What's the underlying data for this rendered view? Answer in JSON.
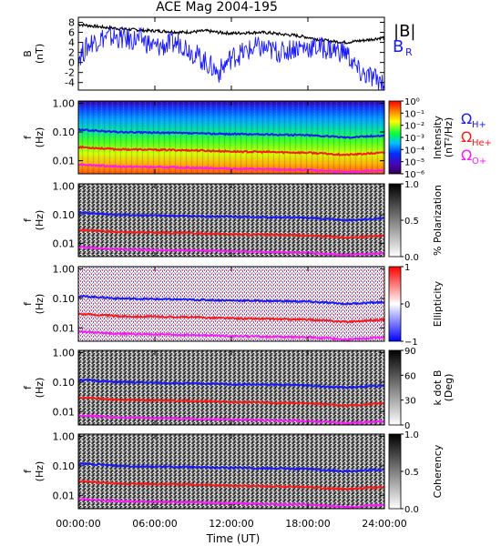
{
  "chart_data": {
    "type": "heatmap",
    "title": "ACE Mag 2004-195",
    "xlabel": "Time (UT)",
    "x_ticks": [
      "00:00:00",
      "06:00:00",
      "12:00:00",
      "18:00:00",
      "24:00:00"
    ],
    "xlim_hours": [
      0,
      24
    ],
    "panels": [
      {
        "name": "B",
        "kind": "line",
        "ylabel": "B",
        "yunit": "(nT)",
        "ylim": [
          -5.5,
          9
        ],
        "y_ticks": [
          "-4",
          "-2",
          "0",
          "2",
          "4",
          "6",
          "8"
        ],
        "legend": [
          "|B|",
          "B",
          "R"
        ],
        "series": [
          {
            "name": "|B|",
            "color": "#000000",
            "x_hours": [
              0,
              1,
              2,
              3,
              4,
              5,
              6,
              7,
              8,
              9,
              10,
              11,
              12,
              13,
              14,
              15,
              16,
              17,
              18,
              19,
              20,
              21,
              22,
              23,
              24
            ],
            "values": [
              7.6,
              7.3,
              7.0,
              6.8,
              6.6,
              6.4,
              6.3,
              6.2,
              6.0,
              6.1,
              6.3,
              6.0,
              5.8,
              5.9,
              6.0,
              5.9,
              5.6,
              5.4,
              5.0,
              4.5,
              4.2,
              4.0,
              4.3,
              4.6,
              5.0
            ]
          },
          {
            "name": "B_R",
            "color": "#1a1aff",
            "x_hours": [
              0,
              1,
              2,
              3,
              4,
              5,
              6,
              7,
              8,
              9,
              10,
              11,
              12,
              13,
              14,
              15,
              16,
              17,
              18,
              19,
              20,
              21,
              22,
              23,
              24
            ],
            "values": [
              1.0,
              4.0,
              5.0,
              5.0,
              4.5,
              4.6,
              3.0,
              3.5,
              4.0,
              2.0,
              0.0,
              -2.0,
              1.0,
              2.0,
              3.0,
              2.5,
              2.0,
              3.0,
              3.0,
              3.0,
              2.5,
              2.0,
              -2.0,
              -3.0,
              -4.0
            ]
          }
        ]
      },
      {
        "name": "Intensity",
        "kind": "spectrogram",
        "ylabel": "f",
        "yunit": "(Hz)",
        "ylim": [
          0.0035,
          1.2
        ],
        "y_ticks": [
          "0.01",
          "0.10",
          "1.00"
        ],
        "colorbar": "rainbow",
        "colorbar_label": "Intensity",
        "colorbar_unit": "(nT²/Hz)",
        "colorbar_ticks": [
          "10⁰",
          "10⁻¹",
          "10⁻²",
          "10⁻³",
          "10⁻⁴",
          "10⁻⁵",
          "10⁻⁶"
        ]
      },
      {
        "name": "Polarization",
        "kind": "spectrogram",
        "ylabel": "f",
        "yunit": "(Hz)",
        "ylim": [
          0.0035,
          1.2
        ],
        "y_ticks": [
          "0.01",
          "0.10",
          "1.00"
        ],
        "colorbar": "gray",
        "colorbar_label": "% Polarization",
        "colorbar_ticks": [
          "1.0",
          "0.5",
          "0.0"
        ]
      },
      {
        "name": "Ellipticity",
        "kind": "spectrogram",
        "ylabel": "f",
        "yunit": "(Hz)",
        "ylim": [
          0.0035,
          1.2
        ],
        "y_ticks": [
          "0.01",
          "0.10",
          "1.00"
        ],
        "colorbar": "bwr",
        "colorbar_label": "Ellipticity",
        "colorbar_ticks": [
          "1",
          "0",
          "−1"
        ]
      },
      {
        "name": "k dot B",
        "kind": "spectrogram",
        "ylabel": "f",
        "yunit": "(Hz)",
        "ylim": [
          0.0035,
          1.2
        ],
        "y_ticks": [
          "0.01",
          "0.10",
          "1.00"
        ],
        "colorbar": "gray",
        "colorbar_label": "k dot B",
        "colorbar_unit": "(Deg)",
        "colorbar_ticks": [
          "90",
          "60",
          "30",
          "0"
        ]
      },
      {
        "name": "Coherency",
        "kind": "spectrogram",
        "ylabel": "f",
        "yunit": "(Hz)",
        "ylim": [
          0.0035,
          1.2
        ],
        "y_ticks": [
          "0.01",
          "0.10",
          "1.00"
        ],
        "colorbar": "gray",
        "colorbar_label": "Coherency",
        "colorbar_ticks": [
          "1.0",
          "0.5",
          "0.0"
        ]
      }
    ],
    "gyrofrequency_legend": [
      {
        "symbol": "Ω",
        "sub": "H+",
        "color": "#1a1aff"
      },
      {
        "symbol": "Ω",
        "sub": "He+",
        "color": "#ff1a1a"
      },
      {
        "symbol": "Ω",
        "sub": "O+",
        "color": "#ff1aff"
      }
    ],
    "gyrofrequency_lines": [
      {
        "name": "H+",
        "color": "#1a1aff",
        "x_hours": [
          0,
          3,
          6,
          9,
          12,
          15,
          18,
          21,
          24
        ],
        "values_hz": [
          0.12,
          0.1,
          0.095,
          0.09,
          0.085,
          0.082,
          0.078,
          0.065,
          0.075
        ]
      },
      {
        "name": "He+",
        "color": "#ff1a1a",
        "x_hours": [
          0,
          3,
          6,
          9,
          12,
          15,
          18,
          21,
          24
        ],
        "values_hz": [
          0.03,
          0.025,
          0.024,
          0.023,
          0.021,
          0.02,
          0.019,
          0.016,
          0.019
        ]
      },
      {
        "name": "O+",
        "color": "#ff1aff",
        "x_hours": [
          0,
          3,
          6,
          9,
          12,
          15,
          18,
          21,
          24
        ],
        "values_hz": [
          0.0075,
          0.0063,
          0.006,
          0.0057,
          0.0053,
          0.005,
          0.0048,
          0.004,
          0.0047
        ]
      }
    ]
  }
}
